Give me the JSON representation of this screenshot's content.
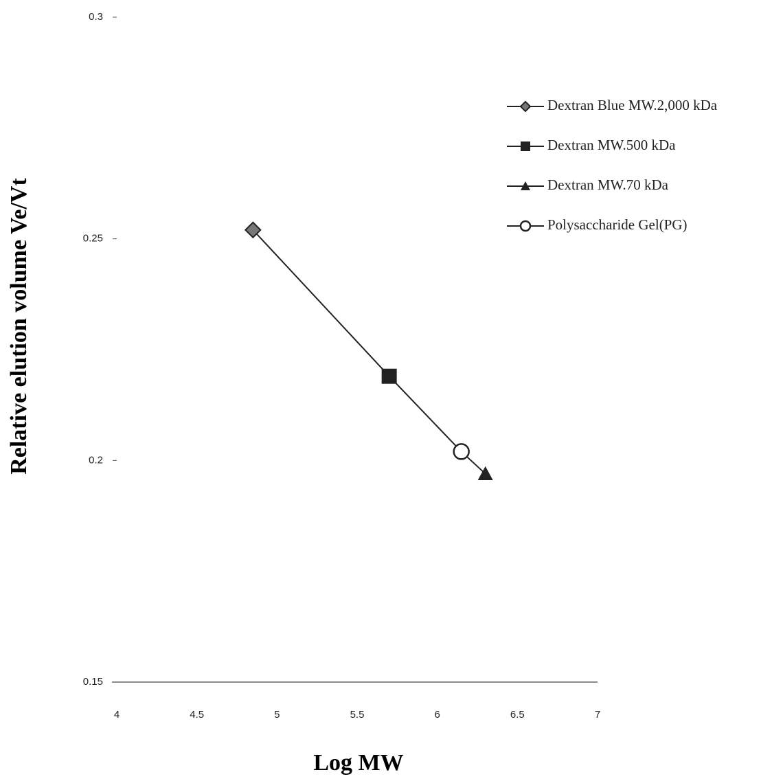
{
  "chart_data": {
    "type": "scatter",
    "x_label": "Log MW",
    "y_label": "Relative  elution  volume Ve/Vt",
    "xlim": [
      4,
      7
    ],
    "xticks": [
      4,
      4.5,
      5,
      5.5,
      6,
      6.5,
      7
    ],
    "ylim": [
      0.15,
      0.3
    ],
    "yticks": [
      0.15,
      0.2,
      0.25,
      0.3
    ],
    "legend": "upper right",
    "series": [
      {
        "name": "Dextran  Blue MW.2,000 kDa",
        "marker": "diamond",
        "color": "#222222",
        "x": [
          4.85
        ],
        "values": [
          0.252
        ]
      },
      {
        "name": "Dextran MW.500 kDa",
        "marker": "square",
        "color": "#222222",
        "x": [
          5.7
        ],
        "values": [
          0.219
        ]
      },
      {
        "name": "Dextran MW.70 kDa",
        "marker": "triangle",
        "color": "#222222",
        "x": [
          6.3
        ],
        "values": [
          0.197
        ]
      },
      {
        "name": "Polysaccharide  Gel(PG)",
        "marker": "circle",
        "color": "#222222",
        "x": [
          6.15
        ],
        "values": [
          0.202
        ]
      }
    ]
  }
}
